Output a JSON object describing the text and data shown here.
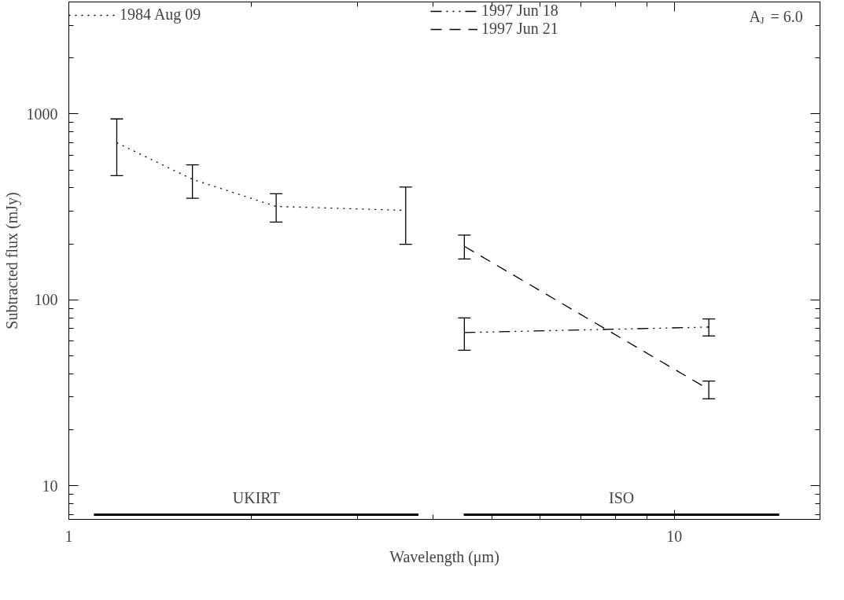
{
  "chart_data": {
    "type": "line",
    "xlabel": "Wavelength (μm)",
    "ylabel": "Subtracted flux (mJy)",
    "log": "xy",
    "xlim": [
      1,
      17.4
    ],
    "ylim": [
      6.6,
      4000
    ],
    "xticks": [
      1,
      10
    ],
    "yticks": [
      10,
      100,
      1000
    ],
    "grid": false,
    "legend": "top",
    "marker": "none",
    "series": [
      {
        "name": "1984 Aug 09",
        "color": "#000000",
        "line_style": "dotted",
        "x": [
          1.2,
          1.6,
          2.2,
          3.6
        ],
        "values": [
          700,
          445,
          318,
          303
        ],
        "errors": [
          [
            466,
            940
          ],
          [
            352,
            532
          ],
          [
            262,
            372
          ],
          [
            199,
            404
          ]
        ]
      },
      {
        "name": "1997 Jun 18",
        "color": "#000000",
        "line_style": "dashdot",
        "x": [
          4.5,
          11.4
        ],
        "values": [
          66.7,
          71.4
        ],
        "errors": [
          [
            53.6,
            80
          ],
          [
            64,
            79
          ]
        ]
      },
      {
        "name": "1997 Jun 21",
        "color": "#000000",
        "line_style": "dashed",
        "x": [
          4.5,
          11.4
        ],
        "values": [
          194,
          33
        ],
        "errors": [
          [
            166,
            223
          ],
          [
            29.4,
            36.6
          ]
        ]
      },
      {
        "name": "UKIRT",
        "color": "#000000",
        "line_style": "solid",
        "x": [
          1.1,
          3.78
        ],
        "values": [
          7,
          7
        ]
      },
      {
        "name": "ISO",
        "color": "#000000",
        "line_style": "solid",
        "x": [
          4.49,
          14.9
        ],
        "values": [
          7,
          7
        ]
      }
    ],
    "annotations": [
      "A$_{J}$ = 6.0"
    ]
  }
}
